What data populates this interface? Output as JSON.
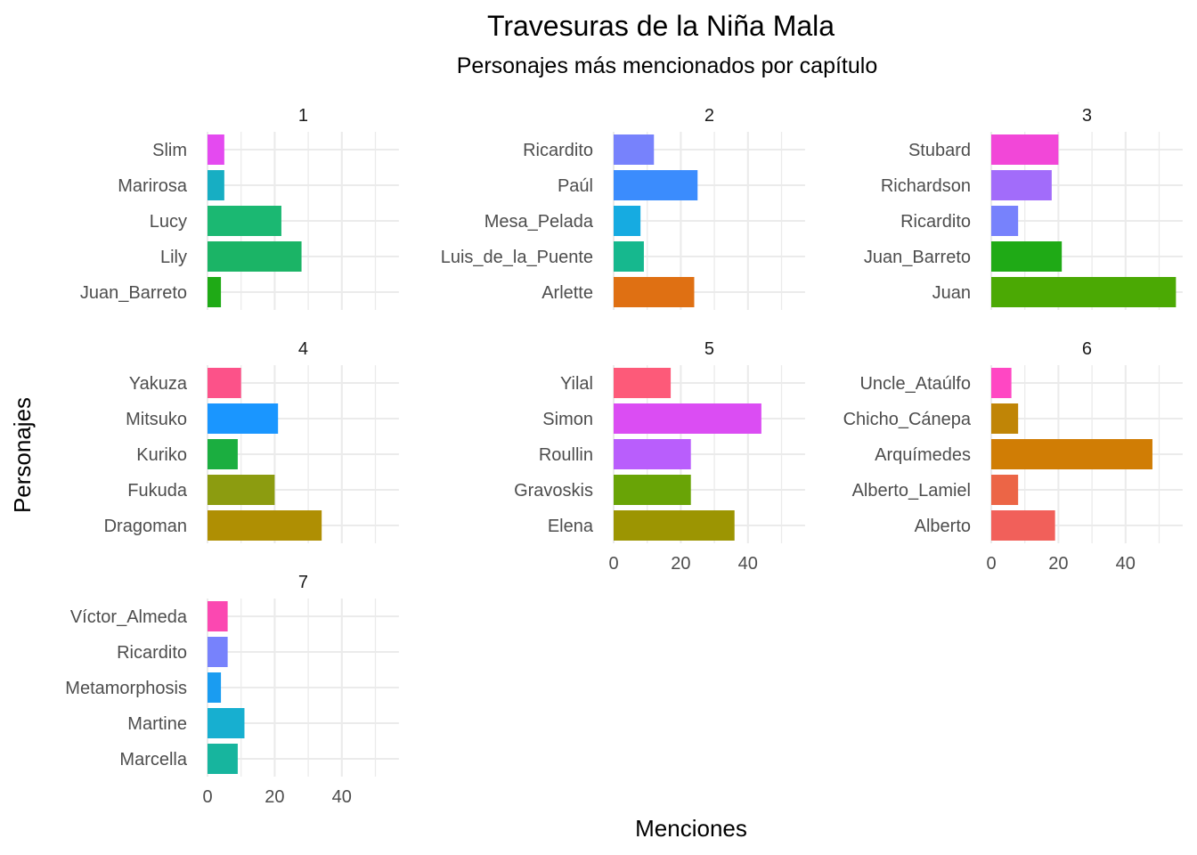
{
  "chart_data": {
    "type": "bar",
    "orientation": "horizontal",
    "faceted": true,
    "title": "Travesuras de la Niña Mala",
    "subtitle": "Personajes más mencionados por capítulo",
    "xlabel": "Menciones",
    "ylabel": "Personajes",
    "xlim": [
      0,
      57
    ],
    "xticks": [
      0,
      20,
      40
    ],
    "grid": true,
    "legend": "none",
    "facets": [
      {
        "label": "1",
        "bars": [
          {
            "name": "Slim",
            "value": 5,
            "color": "#E44AF0"
          },
          {
            "name": "Marirosa",
            "value": 5,
            "color": "#17AEC3"
          },
          {
            "name": "Lucy",
            "value": 22,
            "color": "#1BB872"
          },
          {
            "name": "Lily",
            "value": 28,
            "color": "#1BB466"
          },
          {
            "name": "Juan_Barreto",
            "value": 4,
            "color": "#1FAA16"
          }
        ]
      },
      {
        "label": "2",
        "bars": [
          {
            "name": "Ricardito",
            "value": 12,
            "color": "#7782FC"
          },
          {
            "name": "Paúl",
            "value": 25,
            "color": "#3B8CFD"
          },
          {
            "name": "Mesa_Pelada",
            "value": 8,
            "color": "#16ABE1"
          },
          {
            "name": "Luis_de_la_Puente",
            "value": 9,
            "color": "#16B88E"
          },
          {
            "name": "Arlette",
            "value": 24,
            "color": "#DF7013"
          }
        ]
      },
      {
        "label": "3",
        "bars": [
          {
            "name": "Stubard",
            "value": 20,
            "color": "#F247D8"
          },
          {
            "name": "Richardson",
            "value": 18,
            "color": "#A26CFA"
          },
          {
            "name": "Ricardito",
            "value": 8,
            "color": "#7782FC"
          },
          {
            "name": "Juan_Barreto",
            "value": 21,
            "color": "#1FAA16"
          },
          {
            "name": "Juan",
            "value": 55,
            "color": "#4BA904"
          }
        ]
      },
      {
        "label": "4",
        "bars": [
          {
            "name": "Yakuza",
            "value": 10,
            "color": "#FC5289"
          },
          {
            "name": "Mitsuko",
            "value": 21,
            "color": "#1A96FF"
          },
          {
            "name": "Kuriko",
            "value": 9,
            "color": "#1BAE40"
          },
          {
            "name": "Fukuda",
            "value": 20,
            "color": "#8C9C10"
          },
          {
            "name": "Dragoman",
            "value": 34,
            "color": "#AF8F03"
          }
        ]
      },
      {
        "label": "5",
        "bars": [
          {
            "name": "Yilal",
            "value": 17,
            "color": "#FD5A79"
          },
          {
            "name": "Simon",
            "value": 44,
            "color": "#DB4DF3"
          },
          {
            "name": "Roullin",
            "value": 23,
            "color": "#B95EFC"
          },
          {
            "name": "Gravoskis",
            "value": 23,
            "color": "#69A406"
          },
          {
            "name": "Elena",
            "value": 36,
            "color": "#9C9502"
          }
        ]
      },
      {
        "label": "6",
        "bars": [
          {
            "name": "Uncle_Ataúlfo",
            "value": 6,
            "color": "#FF47C3"
          },
          {
            "name": "Chicho_Cánepa",
            "value": 8,
            "color": "#C08506"
          },
          {
            "name": "Arquímedes",
            "value": 48,
            "color": "#D07D05"
          },
          {
            "name": "Alberto_Lamiel",
            "value": 8,
            "color": "#EC6546"
          },
          {
            "name": "Alberto",
            "value": 19,
            "color": "#F1605A"
          }
        ]
      },
      {
        "label": "7",
        "bars": [
          {
            "name": "Víctor_Almeda",
            "value": 6,
            "color": "#FB48B1"
          },
          {
            "name": "Ricardito",
            "value": 6,
            "color": "#7782FC"
          },
          {
            "name": "Metamorphosis",
            "value": 4,
            "color": "#1A9CF1"
          },
          {
            "name": "Martine",
            "value": 11,
            "color": "#17AFD0"
          },
          {
            "name": "Marcella",
            "value": 9,
            "color": "#17B59E"
          }
        ]
      }
    ]
  }
}
